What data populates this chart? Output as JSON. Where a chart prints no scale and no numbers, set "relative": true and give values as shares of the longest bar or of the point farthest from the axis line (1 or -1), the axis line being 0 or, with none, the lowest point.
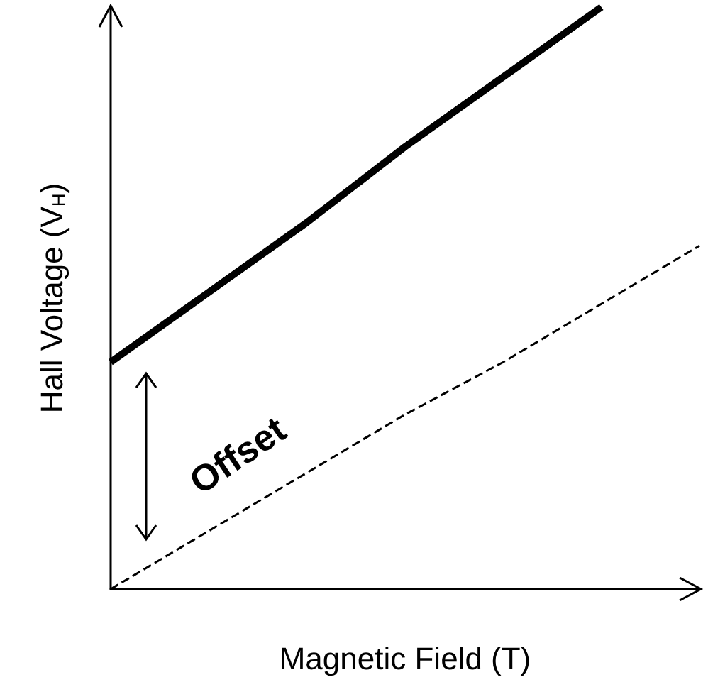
{
  "chart_data": {
    "type": "line",
    "relative": true,
    "xlabel": "Magnetic Field (T)",
    "ylabel": "Hall Voltage (V$_{H}$)",
    "categories": [
      null,
      null,
      null,
      null,
      null,
      null,
      null
    ],
    "series": [
      {
        "color": "#000000",
        "values": [
          0.39,
          0.51,
          0.63,
          0.76,
          0.88,
          1.0,
          null
        ],
        "line_style": "solid"
      },
      {
        "color": "#000000",
        "values": [
          0,
          0.1,
          0.2,
          0.3,
          0.39,
          0.49,
          0.59
        ],
        "line_style": "dashed"
      }
    ],
    "annotations": [
      "Offset"
    ],
    "grid": false,
    "marker": "none"
  }
}
